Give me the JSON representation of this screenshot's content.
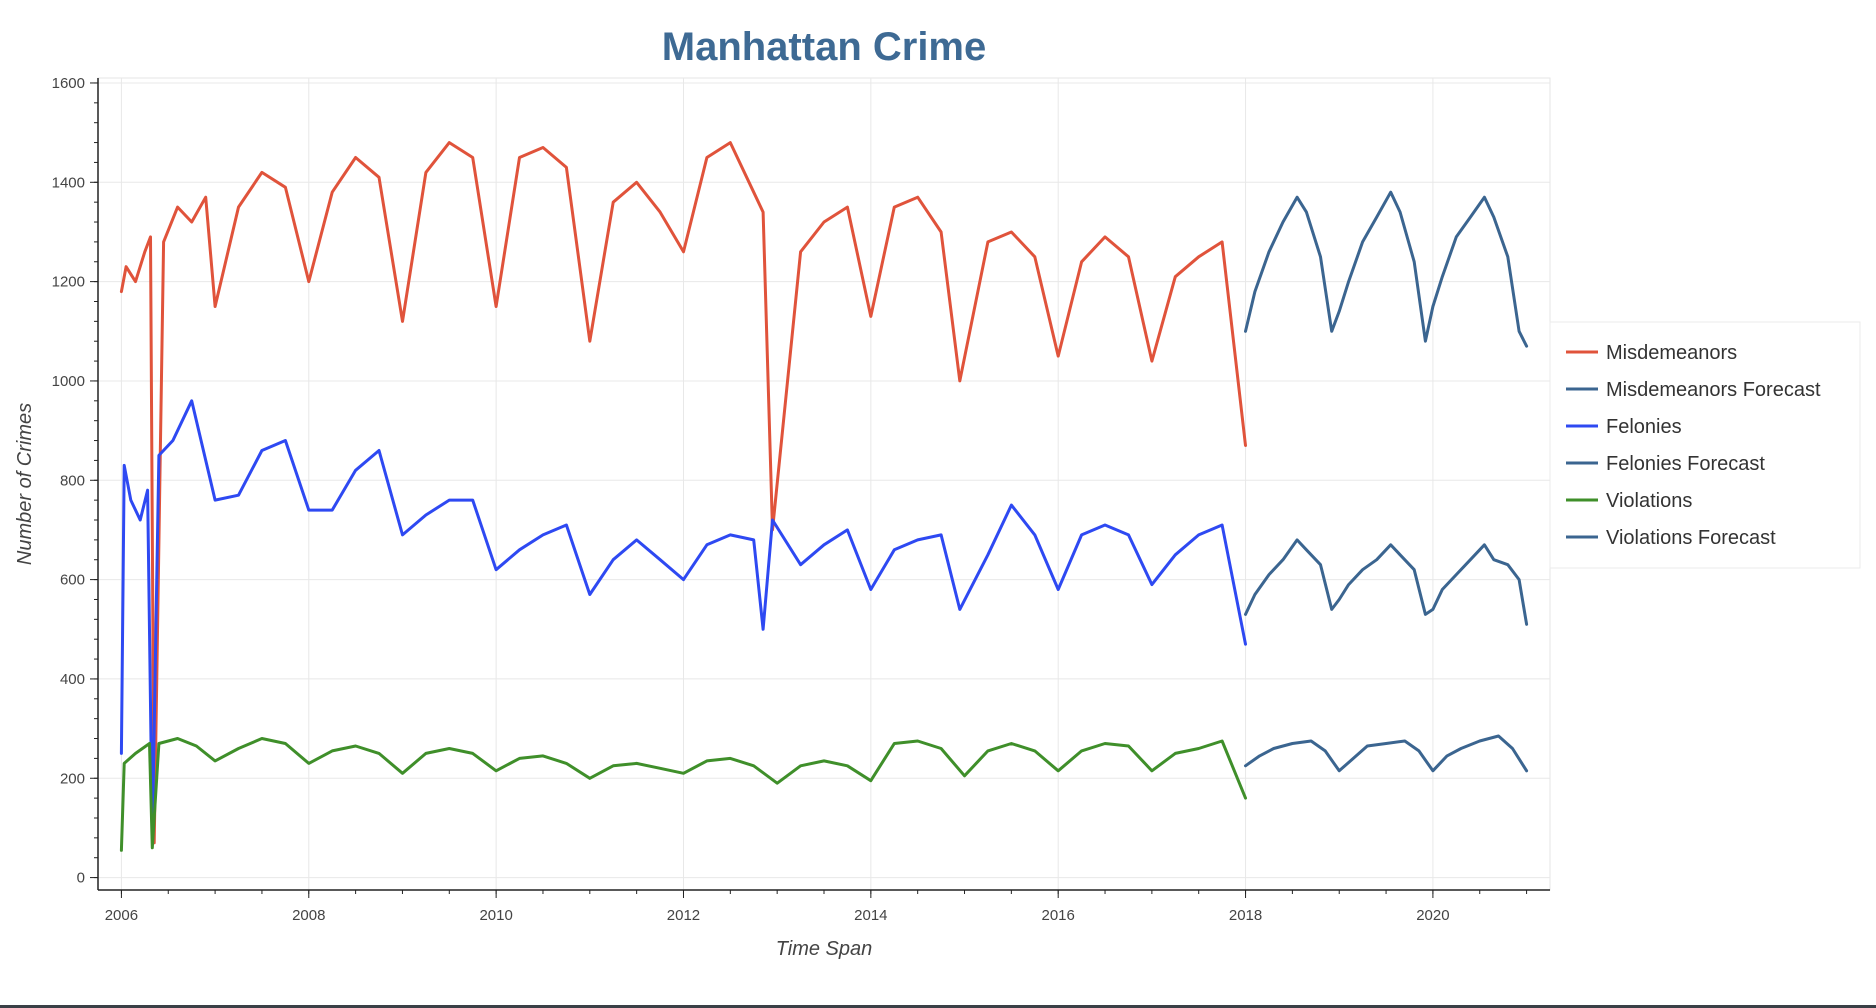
{
  "chart_data": {
    "type": "line",
    "title": "Manhattan Crime",
    "xlabel": "Time Span",
    "ylabel": "Number of Crimes",
    "xlim": [
      2005.75,
      2021.25
    ],
    "ylim": [
      -25,
      1610
    ],
    "x_ticks": [
      "2006",
      "2008",
      "2010",
      "2012",
      "2014",
      "2016",
      "2018",
      "2020"
    ],
    "y_ticks": [
      "0",
      "200",
      "400",
      "600",
      "800",
      "1000",
      "1200",
      "1400",
      "1600"
    ],
    "grid": true,
    "legend_position": "right",
    "series": [
      {
        "name": "Misdemeanors",
        "color": "#e0533b",
        "x": [
          2006.0,
          2006.05,
          2006.15,
          2006.25,
          2006.31,
          2006.35,
          2006.45,
          2006.6,
          2006.75,
          2006.9,
          2007.0,
          2007.25,
          2007.5,
          2007.75,
          2008.0,
          2008.25,
          2008.5,
          2008.75,
          2009.0,
          2009.25,
          2009.5,
          2009.75,
          2010.0,
          2010.25,
          2010.5,
          2010.75,
          2011.0,
          2011.25,
          2011.5,
          2011.75,
          2012.0,
          2012.25,
          2012.5,
          2012.75,
          2012.85,
          2012.95,
          2013.25,
          2013.5,
          2013.75,
          2014.0,
          2014.25,
          2014.5,
          2014.75,
          2014.95,
          2015.25,
          2015.5,
          2015.75,
          2016.0,
          2016.25,
          2016.5,
          2016.75,
          2017.0,
          2017.25,
          2017.5,
          2017.75,
          2018.0
        ],
        "values": [
          1180,
          1230,
          1200,
          1260,
          1290,
          70,
          1280,
          1350,
          1320,
          1370,
          1150,
          1350,
          1420,
          1390,
          1200,
          1380,
          1450,
          1410,
          1120,
          1420,
          1480,
          1450,
          1150,
          1450,
          1470,
          1430,
          1080,
          1360,
          1400,
          1340,
          1260,
          1450,
          1480,
          1380,
          1340,
          700,
          1260,
          1320,
          1350,
          1130,
          1350,
          1370,
          1300,
          1000,
          1280,
          1300,
          1250,
          1050,
          1240,
          1290,
          1250,
          1040,
          1210,
          1250,
          1280,
          870
        ]
      },
      {
        "name": "Misdemeanors Forecast",
        "color": "#3b6590",
        "x": [
          2018.0,
          2018.1,
          2018.25,
          2018.4,
          2018.55,
          2018.65,
          2018.8,
          2018.92,
          2019.0,
          2019.1,
          2019.25,
          2019.4,
          2019.55,
          2019.65,
          2019.8,
          2019.92,
          2020.0,
          2020.1,
          2020.25,
          2020.4,
          2020.55,
          2020.65,
          2020.8,
          2020.92,
          2021.0
        ],
        "values": [
          1100,
          1180,
          1260,
          1320,
          1370,
          1340,
          1250,
          1100,
          1140,
          1200,
          1280,
          1330,
          1380,
          1340,
          1240,
          1080,
          1150,
          1210,
          1290,
          1330,
          1370,
          1330,
          1250,
          1100,
          1070
        ]
      },
      {
        "name": "Felonies",
        "color": "#2e49f2",
        "x": [
          2006.0,
          2006.03,
          2006.1,
          2006.2,
          2006.28,
          2006.33,
          2006.4,
          2006.55,
          2006.75,
          2007.0,
          2007.25,
          2007.5,
          2007.75,
          2008.0,
          2008.25,
          2008.5,
          2008.75,
          2009.0,
          2009.25,
          2009.5,
          2009.75,
          2010.0,
          2010.25,
          2010.5,
          2010.75,
          2011.0,
          2011.25,
          2011.5,
          2011.75,
          2012.0,
          2012.25,
          2012.5,
          2012.75,
          2012.85,
          2012.95,
          2013.25,
          2013.5,
          2013.75,
          2014.0,
          2014.25,
          2014.5,
          2014.75,
          2014.95,
          2015.25,
          2015.5,
          2015.75,
          2016.0,
          2016.25,
          2016.5,
          2016.75,
          2017.0,
          2017.25,
          2017.5,
          2017.75,
          2018.0
        ],
        "values": [
          250,
          830,
          760,
          720,
          780,
          80,
          850,
          880,
          960,
          760,
          770,
          860,
          880,
          740,
          740,
          820,
          860,
          690,
          730,
          760,
          760,
          620,
          660,
          690,
          710,
          570,
          640,
          680,
          640,
          600,
          670,
          690,
          680,
          500,
          720,
          630,
          670,
          700,
          580,
          660,
          680,
          690,
          540,
          650,
          750,
          690,
          580,
          690,
          710,
          690,
          590,
          650,
          690,
          710,
          470
        ]
      },
      {
        "name": "Felonies Forecast",
        "color": "#3b6590",
        "x": [
          2018.0,
          2018.1,
          2018.25,
          2018.4,
          2018.55,
          2018.65,
          2018.8,
          2018.92,
          2019.0,
          2019.1,
          2019.25,
          2019.4,
          2019.55,
          2019.65,
          2019.8,
          2019.92,
          2020.0,
          2020.1,
          2020.25,
          2020.4,
          2020.55,
          2020.65,
          2020.8,
          2020.92,
          2021.0
        ],
        "values": [
          530,
          570,
          610,
          640,
          680,
          660,
          630,
          540,
          560,
          590,
          620,
          640,
          670,
          650,
          620,
          530,
          540,
          580,
          610,
          640,
          670,
          640,
          630,
          600,
          510
        ]
      },
      {
        "name": "Violations",
        "color": "#3f8f2a",
        "x": [
          2006.0,
          2006.03,
          2006.15,
          2006.3,
          2006.33,
          2006.4,
          2006.6,
          2006.8,
          2007.0,
          2007.25,
          2007.5,
          2007.75,
          2008.0,
          2008.25,
          2008.5,
          2008.75,
          2009.0,
          2009.25,
          2009.5,
          2009.75,
          2010.0,
          2010.25,
          2010.5,
          2010.75,
          2011.0,
          2011.25,
          2011.5,
          2011.75,
          2012.0,
          2012.25,
          2012.5,
          2012.75,
          2013.0,
          2013.25,
          2013.5,
          2013.75,
          2014.0,
          2014.25,
          2014.5,
          2014.75,
          2015.0,
          2015.25,
          2015.5,
          2015.75,
          2016.0,
          2016.25,
          2016.5,
          2016.75,
          2017.0,
          2017.25,
          2017.5,
          2017.75,
          2018.0
        ],
        "values": [
          55,
          230,
          250,
          270,
          60,
          270,
          280,
          265,
          235,
          260,
          280,
          270,
          230,
          255,
          265,
          250,
          210,
          250,
          260,
          250,
          215,
          240,
          245,
          230,
          200,
          225,
          230,
          220,
          210,
          235,
          240,
          225,
          190,
          225,
          235,
          225,
          195,
          270,
          275,
          260,
          205,
          255,
          270,
          255,
          215,
          255,
          270,
          265,
          215,
          250,
          260,
          275,
          160
        ]
      },
      {
        "name": "Violations Forecast",
        "color": "#3b6590",
        "x": [
          2018.0,
          2018.15,
          2018.3,
          2018.5,
          2018.7,
          2018.85,
          2019.0,
          2019.15,
          2019.3,
          2019.5,
          2019.7,
          2019.85,
          2020.0,
          2020.15,
          2020.3,
          2020.5,
          2020.7,
          2020.85,
          2021.0
        ],
        "values": [
          225,
          245,
          260,
          270,
          275,
          255,
          215,
          240,
          265,
          270,
          275,
          255,
          215,
          245,
          260,
          275,
          285,
          260,
          215
        ]
      }
    ]
  }
}
